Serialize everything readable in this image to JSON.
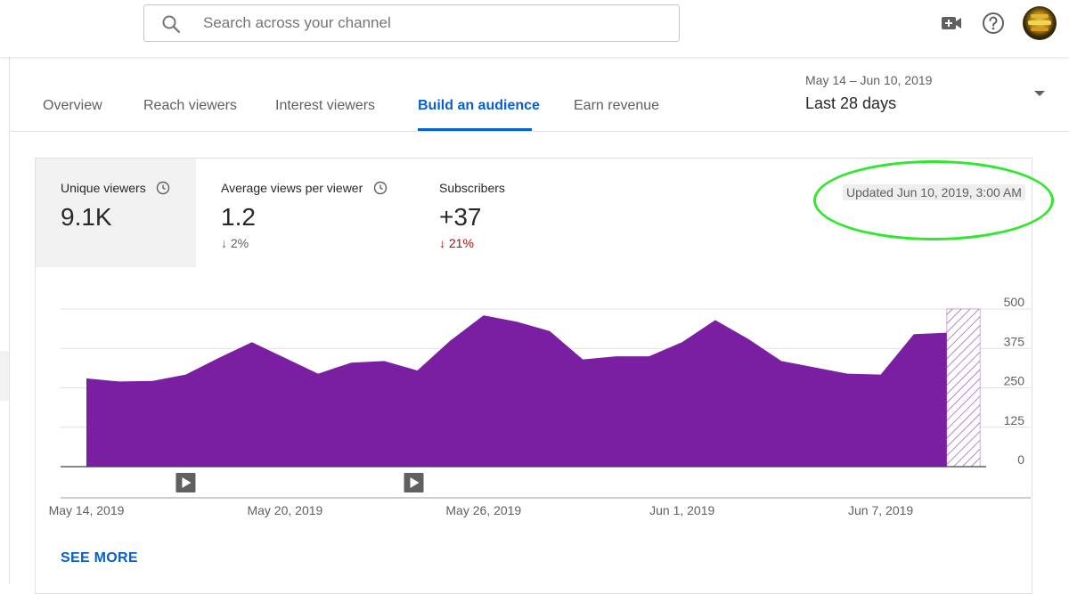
{
  "search": {
    "placeholder": "Search across your channel"
  },
  "header_icons": [
    "create-video-icon",
    "help-icon"
  ],
  "tabs": [
    {
      "label": "Overview",
      "active": false
    },
    {
      "label": "Reach viewers",
      "active": false
    },
    {
      "label": "Interest viewers",
      "active": false
    },
    {
      "label": "Build an audience",
      "active": true
    },
    {
      "label": "Earn revenue",
      "active": false
    }
  ],
  "date_range": {
    "range": "May 14 – Jun 10, 2019",
    "label": "Last 28 days"
  },
  "metrics": [
    {
      "label": "Unique viewers",
      "value": "9.1K",
      "delta": ""
    },
    {
      "label": "Average views per viewer",
      "value": "1.2",
      "delta": "2%"
    },
    {
      "label": "Subscribers",
      "value": "+37",
      "delta": "21%"
    }
  ],
  "updated": "Updated Jun 10, 2019, 3:00 AM",
  "see_more": "SEE MORE",
  "colors": {
    "accent": "#065fd4",
    "series": "#7b1fa2",
    "negative": "#cc0000",
    "highlight": "#2ee82e"
  },
  "chart_data": {
    "type": "area",
    "title": "Unique viewers",
    "x": [
      "May 14, 2019",
      "May 15, 2019",
      "May 16, 2019",
      "May 17, 2019",
      "May 18, 2019",
      "May 19, 2019",
      "May 20, 2019",
      "May 21, 2019",
      "May 22, 2019",
      "May 23, 2019",
      "May 24, 2019",
      "May 25, 2019",
      "May 26, 2019",
      "May 27, 2019",
      "May 28, 2019",
      "May 29, 2019",
      "May 30, 2019",
      "May 31, 2019",
      "Jun 1, 2019",
      "Jun 2, 2019",
      "Jun 3, 2019",
      "Jun 4, 2019",
      "Jun 5, 2019",
      "Jun 6, 2019",
      "Jun 7, 2019",
      "Jun 8, 2019",
      "Jun 9, 2019"
    ],
    "values": [
      280,
      270,
      272,
      292,
      345,
      395,
      345,
      295,
      330,
      335,
      305,
      400,
      480,
      460,
      430,
      340,
      350,
      350,
      395,
      465,
      405,
      335,
      315,
      295,
      292,
      420,
      425
    ],
    "partial": {
      "x": "Jun 10, 2019",
      "value": 500,
      "style": "hatched"
    },
    "xticks": [
      "May 14, 2019",
      "May 20, 2019",
      "May 26, 2019",
      "Jun 1, 2019",
      "Jun 7, 2019"
    ],
    "yticks": [
      "0",
      "125",
      "250",
      "375",
      "500"
    ],
    "ylim": [
      0,
      500
    ],
    "ylabel_position": "right",
    "annotations": [
      {
        "x": "May 17, 2019",
        "type": "video-published"
      },
      {
        "x": "May 24, 2019",
        "type": "video-published"
      }
    ]
  }
}
